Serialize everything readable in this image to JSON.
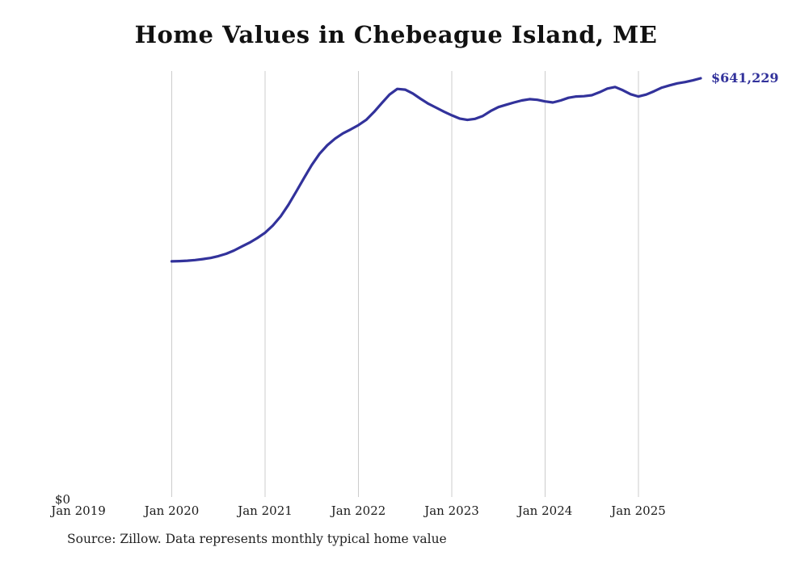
{
  "chart_data": {
    "type": "line",
    "title": "Home Values in Chebeague Island, ME",
    "x_ticks": [
      "Jan 2019",
      "Jan 2020",
      "Jan 2021",
      "Jan 2022",
      "Jan 2023",
      "Jan 2024",
      "Jan 2025"
    ],
    "y_zero_label": "$0",
    "end_label": "$641,229",
    "end_value": 641229,
    "line_color": "#32329b",
    "grid_color": "#cccccc",
    "grid": "vertical-only",
    "legend": "none",
    "ylim": [
      0,
      660000
    ],
    "x": [
      "2020-01",
      "2020-02",
      "2020-03",
      "2020-04",
      "2020-05",
      "2020-06",
      "2020-07",
      "2020-08",
      "2020-09",
      "2020-10",
      "2020-11",
      "2020-12",
      "2021-01",
      "2021-02",
      "2021-03",
      "2021-04",
      "2021-05",
      "2021-06",
      "2021-07",
      "2021-08",
      "2021-09",
      "2021-10",
      "2021-11",
      "2021-12",
      "2022-01",
      "2022-02",
      "2022-03",
      "2022-04",
      "2022-05",
      "2022-06",
      "2022-07",
      "2022-08",
      "2022-09",
      "2022-10",
      "2022-11",
      "2022-12",
      "2023-01",
      "2023-02",
      "2023-03",
      "2023-04",
      "2023-05",
      "2023-06",
      "2023-07",
      "2023-08",
      "2023-09",
      "2023-10",
      "2023-11",
      "2023-12",
      "2024-01",
      "2024-02",
      "2024-03",
      "2024-04",
      "2024-05",
      "2024-06",
      "2024-07",
      "2024-08",
      "2024-09",
      "2024-10",
      "2024-11",
      "2024-12",
      "2025-01",
      "2025-02",
      "2025-03",
      "2025-04",
      "2025-05",
      "2025-06",
      "2025-07",
      "2025-08",
      "2025-09"
    ],
    "values": [
      363000,
      363400,
      364000,
      365000,
      366500,
      368200,
      371000,
      374500,
      379500,
      385500,
      391500,
      398500,
      406500,
      417500,
      431500,
      449000,
      469000,
      489500,
      509500,
      526500,
      539500,
      549500,
      557500,
      563500,
      570000,
      578000,
      590000,
      603500,
      616500,
      625000,
      624000,
      618000,
      610000,
      602500,
      596500,
      590500,
      585000,
      580000,
      578000,
      579500,
      584000,
      591500,
      597500,
      601000,
      604500,
      607500,
      609500,
      608500,
      606000,
      604500,
      607500,
      611500,
      613500,
      614000,
      615500,
      620000,
      625500,
      628000,
      623000,
      617000,
      613500,
      616500,
      621500,
      627000,
      630500,
      633500,
      635500,
      638000,
      641229
    ],
    "source": "Source: Zillow. Data represents monthly typical home value"
  }
}
